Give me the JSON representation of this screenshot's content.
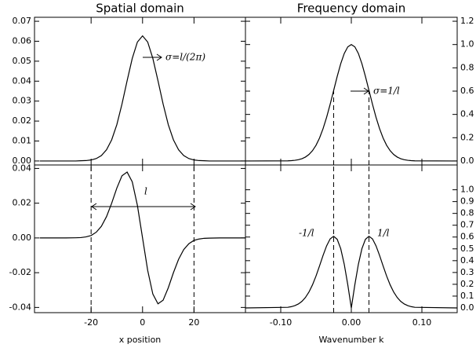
{
  "chart_data": [
    {
      "type": "line",
      "title": "Spatial domain",
      "x": [
        -40,
        -30,
        -26,
        -24,
        -22,
        -20,
        -18,
        -16,
        -14,
        -12,
        -10,
        -8,
        -6,
        -4,
        -2,
        0,
        2,
        4,
        6,
        8,
        10,
        12,
        14,
        16,
        18,
        20,
        22,
        24,
        26,
        30,
        40
      ],
      "values": [
        0,
        0,
        0,
        0.0001,
        0.0002,
        0.0005,
        0.0012,
        0.0027,
        0.0056,
        0.0106,
        0.0182,
        0.0285,
        0.0402,
        0.0514,
        0.0596,
        0.0627,
        0.0596,
        0.0514,
        0.0402,
        0.0285,
        0.0182,
        0.0106,
        0.0056,
        0.0027,
        0.0012,
        0.0005,
        0.0002,
        0.0001,
        0,
        0,
        0
      ],
      "color": "#000000",
      "xlim": [
        -42,
        40
      ],
      "xticks": [
        -20,
        0,
        20
      ],
      "ylim": [
        -0.002,
        0.072
      ],
      "yticks": [
        {
          "value": 0,
          "label": "0.00"
        },
        0.01,
        0.02,
        0.03,
        0.04,
        0.05,
        0.06,
        0.07
      ],
      "annotations": [
        "σ=l/(2π)"
      ]
    },
    {
      "type": "line",
      "title": "Frequency domain",
      "x": [
        -0.15,
        -0.09,
        -0.085,
        -0.08,
        -0.075,
        -0.07,
        -0.065,
        -0.06,
        -0.055,
        -0.05,
        -0.045,
        -0.04,
        -0.035,
        -0.03,
        -0.025,
        -0.02,
        -0.015,
        -0.01,
        -0.005,
        0,
        0.005,
        0.01,
        0.015,
        0.02,
        0.025,
        0.03,
        0.035,
        0.04,
        0.045,
        0.05,
        0.055,
        0.06,
        0.065,
        0.07,
        0.075,
        0.08,
        0.085,
        0.09,
        0.15
      ],
      "values": [
        0,
        0.0015,
        0.0031,
        0.006,
        0.0111,
        0.0198,
        0.034,
        0.0561,
        0.0889,
        0.1353,
        0.1979,
        0.278,
        0.3753,
        0.4868,
        0.6065,
        0.7261,
        0.8353,
        0.9231,
        0.9802,
        1,
        0.9802,
        0.9231,
        0.8353,
        0.7261,
        0.6065,
        0.4868,
        0.3753,
        0.278,
        0.1979,
        0.1353,
        0.0889,
        0.0561,
        0.034,
        0.0198,
        0.0111,
        0.006,
        0.0031,
        0.0015,
        0
      ],
      "color": "#000000",
      "xlim": [
        -0.15,
        0.15
      ],
      "xticks": [
        {
          "value": -0.1,
          "label": "-0.10"
        },
        {
          "value": 0,
          "label": "0.00"
        },
        {
          "value": 0.1,
          "label": "0.10"
        }
      ],
      "ylim": [
        -0.034,
        1.234
      ],
      "yticks": [
        {
          "value": 0,
          "label": "0.0"
        },
        0.2,
        0.4,
        0.6,
        0.8,
        {
          "value": 1,
          "label": "1.0"
        },
        1.2
      ],
      "vlines": [
        -0.025,
        0.025
      ],
      "annotations": [
        "σ=1/l"
      ]
    },
    {
      "type": "line",
      "xlabel": "x position",
      "x": [
        -40,
        -30,
        -26,
        -24,
        -22,
        -20,
        -18,
        -16,
        -14,
        -12,
        -10,
        -8,
        -6,
        -4,
        -2,
        0,
        2,
        4,
        6,
        8,
        10,
        12,
        14,
        16,
        18,
        20,
        22,
        24,
        26,
        30,
        40
      ],
      "values": [
        0,
        0,
        0.0001,
        0.0002,
        0.0006,
        0.0014,
        0.0033,
        0.0067,
        0.0123,
        0.02,
        0.0287,
        0.0358,
        0.0379,
        0.0323,
        0.0187,
        0,
        -0.0187,
        -0.0323,
        -0.0379,
        -0.0358,
        -0.0287,
        -0.02,
        -0.0123,
        -0.0067,
        -0.0033,
        -0.0014,
        -0.0006,
        -0.0002,
        -0.0001,
        0,
        0
      ],
      "color": "#000000",
      "xlim": [
        -42,
        40
      ],
      "xticks": [
        -20,
        0,
        20
      ],
      "ylim": [
        -0.043,
        0.042
      ],
      "yticks": [
        -0.04,
        -0.02,
        {
          "value": 0,
          "label": "0.00"
        },
        0.02,
        0.04
      ],
      "vlines": [
        -20,
        20
      ],
      "annotations": [
        "l"
      ]
    },
    {
      "type": "line",
      "xlabel": "Wavenumber k",
      "x": [
        -0.15,
        -0.09,
        -0.085,
        -0.08,
        -0.075,
        -0.07,
        -0.065,
        -0.06,
        -0.055,
        -0.05,
        -0.045,
        -0.04,
        -0.035,
        -0.03,
        -0.025,
        -0.02,
        -0.015,
        -0.01,
        -0.005,
        0,
        0.005,
        0.01,
        0.015,
        0.02,
        0.025,
        0.03,
        0.035,
        0.04,
        0.045,
        0.05,
        0.055,
        0.06,
        0.065,
        0.07,
        0.075,
        0.08,
        0.085,
        0.09,
        0.15
      ],
      "values": [
        0,
        0.0054,
        0.0105,
        0.0192,
        0.0333,
        0.0554,
        0.0884,
        0.1346,
        0.1956,
        0.2706,
        0.3562,
        0.4448,
        0.5254,
        0.5842,
        0.6065,
        0.5809,
        0.5012,
        0.3692,
        0.196,
        0,
        0.196,
        0.3692,
        0.5012,
        0.5809,
        0.6065,
        0.5842,
        0.5254,
        0.4448,
        0.3562,
        0.2706,
        0.1956,
        0.1346,
        0.0884,
        0.0554,
        0.0333,
        0.0192,
        0.0105,
        0.0054,
        0
      ],
      "color": "#000000",
      "xlim": [
        -0.15,
        0.15
      ],
      "xticks": [
        {
          "value": -0.1,
          "label": "-0.10"
        },
        {
          "value": 0,
          "label": "0.00"
        },
        {
          "value": 0.1,
          "label": "0.10"
        }
      ],
      "ylim": [
        -0.04,
        1.21
      ],
      "yticks": [
        {
          "value": 0,
          "label": "0.0"
        },
        0.1,
        0.2,
        0.3,
        0.4,
        0.5,
        0.6,
        0.7,
        0.8,
        0.9,
        {
          "value": 1,
          "label": "1.0"
        }
      ],
      "vlines": [
        -0.025,
        0.025
      ],
      "annotations": [
        "-1/l",
        "1/l"
      ]
    }
  ]
}
